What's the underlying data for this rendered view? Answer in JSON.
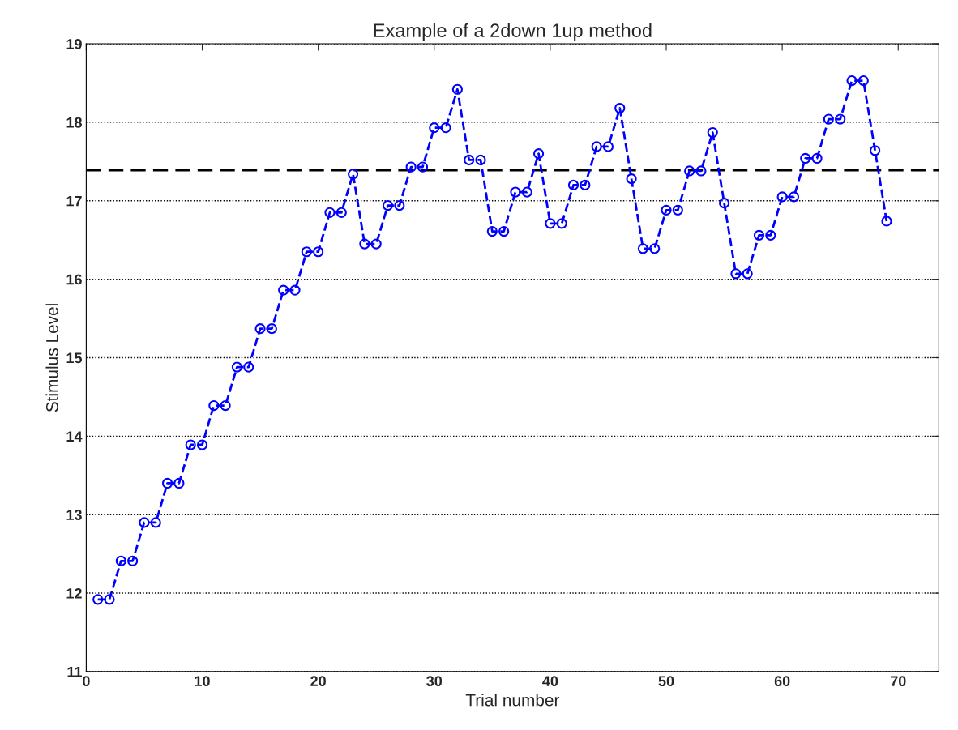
{
  "chart_data": {
    "type": "line",
    "title": "Example of a 2down 1up method",
    "xlabel": "Trial number",
    "ylabel": "Stimulus Level",
    "x": [
      1,
      2,
      3,
      4,
      5,
      6,
      7,
      8,
      9,
      10,
      11,
      12,
      13,
      14,
      15,
      16,
      17,
      18,
      19,
      20,
      21,
      22,
      23,
      24,
      25,
      26,
      27,
      28,
      29,
      30,
      31,
      32,
      33,
      34,
      35,
      36,
      37,
      38,
      39,
      40,
      41,
      42,
      43,
      44,
      45,
      46,
      47,
      48,
      49,
      50,
      51,
      52,
      53,
      54,
      55,
      56,
      57,
      58,
      59,
      60,
      61,
      62,
      63,
      64,
      65,
      66,
      67,
      68,
      69
    ],
    "series": [
      {
        "color": "#0000ff",
        "values": [
          11.92,
          11.92,
          12.41,
          12.41,
          12.9,
          12.9,
          13.4,
          13.4,
          13.89,
          13.89,
          14.39,
          14.39,
          14.88,
          14.88,
          15.37,
          15.37,
          15.86,
          15.86,
          16.35,
          16.35,
          16.85,
          16.85,
          17.34,
          16.45,
          16.45,
          16.94,
          16.94,
          17.43,
          17.43,
          17.93,
          17.93,
          18.42,
          17.52,
          17.52,
          16.61,
          16.61,
          17.11,
          17.11,
          17.6,
          16.71,
          16.71,
          17.2,
          17.2,
          17.69,
          17.69,
          18.18,
          17.28,
          16.39,
          16.39,
          16.88,
          16.88,
          17.38,
          17.38,
          17.87,
          16.97,
          16.07,
          16.07,
          16.56,
          16.56,
          17.05,
          17.05,
          17.54,
          17.54,
          18.04,
          18.04,
          18.53,
          18.53,
          17.64,
          16.74
        ]
      }
    ],
    "marker": "circle",
    "line_style": "dashed",
    "grid": "y",
    "ref_lines": [
      {
        "axis": "y",
        "value": 17.39,
        "color": "#000000",
        "line_style": "dashed"
      }
    ],
    "xlim": [
      0,
      73.5
    ],
    "xticks": [
      0,
      10,
      20,
      30,
      40,
      50,
      60,
      70
    ],
    "ylim": [
      11,
      19
    ],
    "yticks": [
      11,
      12,
      13,
      14,
      15,
      16,
      17,
      18,
      19
    ]
  }
}
